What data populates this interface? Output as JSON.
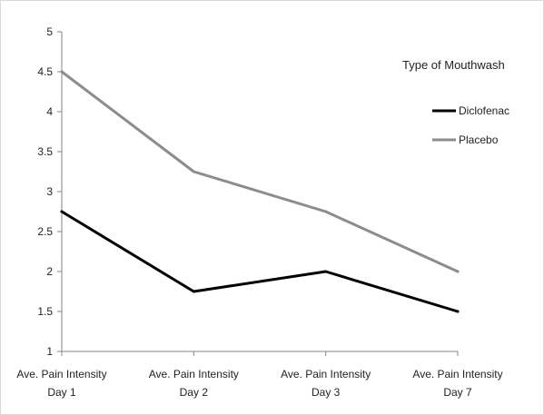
{
  "chart_data": {
    "type": "line",
    "categories": [
      [
        "Ave. Pain Intensity",
        "Day 1"
      ],
      [
        "Ave. Pain Intensity",
        "Day 2"
      ],
      [
        "Ave. Pain Intensity",
        "Day 3"
      ],
      [
        "Ave. Pain Intensity",
        "Day 7"
      ]
    ],
    "series": [
      {
        "name": "Diclofenac",
        "color": "#000000",
        "values": [
          2.75,
          1.75,
          2.0,
          1.5
        ]
      },
      {
        "name": "Placebo",
        "color": "#8c8c8c",
        "values": [
          4.5,
          3.25,
          2.75,
          2.0
        ]
      }
    ],
    "y_ticks": [
      "1",
      "1.5",
      "2",
      "2.5",
      "3",
      "3.5",
      "4",
      "4.5",
      "5"
    ],
    "ylim": [
      1,
      5
    ],
    "legend": {
      "title": "Type of Mouthwash",
      "placement": "right"
    },
    "grid": false
  }
}
